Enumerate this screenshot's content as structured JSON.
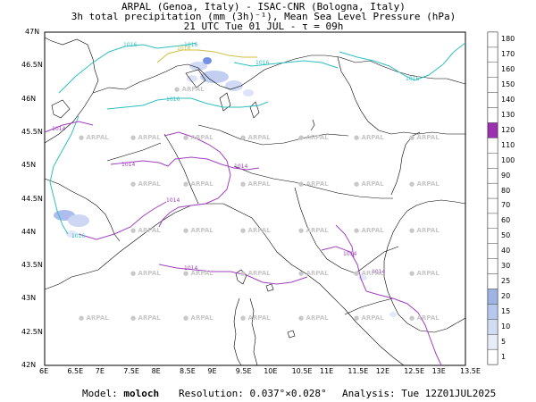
{
  "header": {
    "line1": "ARPAL (Genoa, Italy)  -  ISAC-CNR (Bologna, Italy)",
    "line2": "3h total precipitation (mm (3h)⁻¹), Mean Sea Level Pressure (hPa)",
    "line3": "21 UTC Tue 01 JUL  -  τ = 09h"
  },
  "footer": {
    "model_label": "Model:",
    "model_value": "moloch",
    "resolution_label": "Resolution:",
    "resolution_value": "0.037°×0.028°",
    "analysis_label": "Analysis:",
    "analysis_value": "Tue 12Z01JUL2025"
  },
  "map": {
    "lat_labels": [
      "47N",
      "46.5N",
      "46N",
      "45.5N",
      "45N",
      "44.5N",
      "44N",
      "43.5N",
      "43N",
      "42.5N",
      "42N"
    ],
    "lon_labels": [
      "6E",
      "6.5E",
      "7E",
      "7.5E",
      "8E",
      "8.5E",
      "9E",
      "9.5E",
      "10E",
      "10.5E",
      "11E",
      "11.5E",
      "12E",
      "12.5E",
      "13E",
      "13.5E"
    ],
    "watermark": "ARPAL",
    "isobars": [
      {
        "label": "1016",
        "color": "#2fbfbf"
      },
      {
        "label": "1016",
        "color": "#2fbfbf"
      },
      {
        "label": "1016",
        "color": "#2fbfbf"
      },
      {
        "label": "1016",
        "color": "#2fbfbf"
      },
      {
        "label": "1016",
        "color": "#2fbfbf"
      },
      {
        "label": "1016",
        "color": "#2fbfbf"
      },
      {
        "label": "1014",
        "color": "#a040c0"
      },
      {
        "label": "1014",
        "color": "#a040c0"
      },
      {
        "label": "1014",
        "color": "#a040c0"
      },
      {
        "label": "1014",
        "color": "#a040c0"
      },
      {
        "label": "1014",
        "color": "#a040c0"
      },
      {
        "label": "1014",
        "color": "#a040c0"
      },
      {
        "label": "1014",
        "color": "#a040c0"
      },
      {
        "label": "1018",
        "color": "#d0c040"
      }
    ]
  },
  "colorbar": {
    "levels": [
      "1",
      "5",
      "10",
      "15",
      "20",
      "25",
      "30",
      "40",
      "50",
      "60",
      "70",
      "80",
      "90",
      "100",
      "110",
      "120",
      "130",
      "140",
      "150",
      "160",
      "170",
      "180"
    ],
    "colors": [
      "#ffffff",
      "#e8eef8",
      "#cfdcf2",
      "#b6c8ec",
      "#9db4e4",
      "#ffffff",
      "#ffffff",
      "#ffffff",
      "#ffffff",
      "#ffffff",
      "#ffffff",
      "#ffffff",
      "#ffffff",
      "#ffffff",
      "#ffffff",
      "#9a2fb0",
      "#ffffff",
      "#ffffff",
      "#ffffff",
      "#ffffff",
      "#ffffff",
      "#ffffff"
    ]
  },
  "colors": {
    "isobar_1016": "#2fbfbf",
    "isobar_1014": "#a040c0",
    "isobar_1018": "#d0c040",
    "precip": "#5b7fe0"
  }
}
